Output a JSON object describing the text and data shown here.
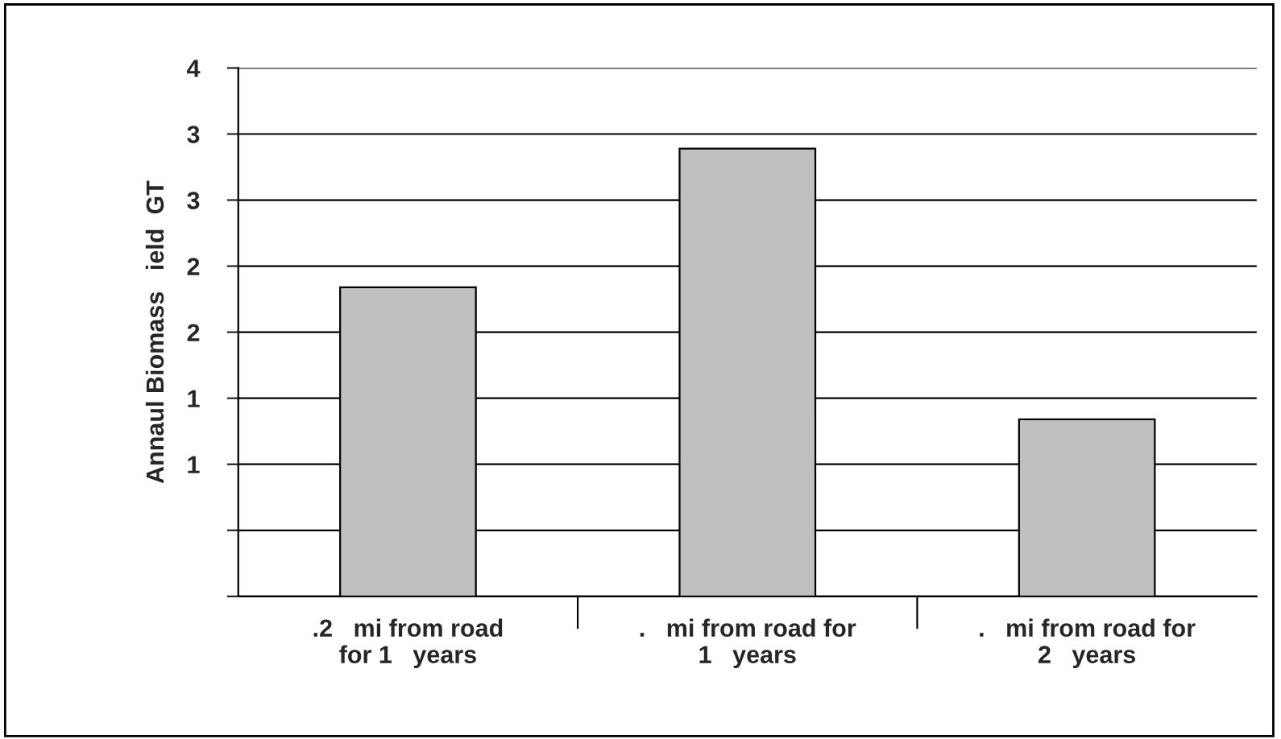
{
  "chart_data": {
    "type": "bar",
    "ylabel": "Annaul Biomass   ield  GT",
    "categories": [
      ".2   mi from road\nfor 1   years",
      ".   mi from road for\n1   years",
      ".   mi from road for\n2   years"
    ],
    "values": [
      2.34,
      3.39,
      1.34
    ],
    "color": "#c0c0c0",
    "ylim": [
      0,
      4
    ],
    "yticks": [
      {
        "value": 0,
        "label": null
      },
      {
        "value": 0.5,
        "label": null
      },
      {
        "value": 1,
        "label": "1"
      },
      {
        "value": 1.5,
        "label": "1"
      },
      {
        "value": 2,
        "label": "2"
      },
      {
        "value": 2.5,
        "label": "2"
      },
      {
        "value": 3,
        "label": "3"
      },
      {
        "value": 3.5,
        "label": "3"
      },
      {
        "value": 4,
        "label": "4"
      }
    ],
    "grid": "y"
  }
}
